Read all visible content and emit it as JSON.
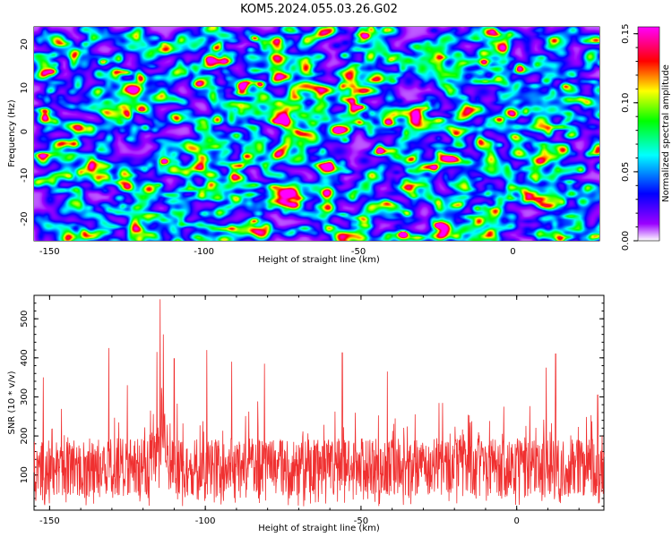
{
  "title": "KOM5.2024.055.03.26.G02",
  "chart_data": [
    {
      "type": "heatmap",
      "xlabel": "Height of straight line (km)",
      "ylabel": "Frequency (Hz)",
      "xlim": [
        -155,
        28
      ],
      "ylim": [
        -25,
        24
      ],
      "x_ticks": [
        "-150",
        "-100",
        "-50",
        "0"
      ],
      "y_ticks": [
        "-20",
        "-10",
        "0",
        "10",
        "20"
      ],
      "colorbar": {
        "label": "Normalized spectral amplitude",
        "range": [
          0.0,
          0.155
        ],
        "ticks": [
          "0.00",
          "0.05",
          "0.10",
          "0.15"
        ],
        "colormap": [
          "#ffffff",
          "#9a00ff",
          "#0000ff",
          "#00ffff",
          "#00ff00",
          "#ffff00",
          "#ff0000",
          "#ff00ff"
        ]
      },
      "hotspots": [
        {
          "x": -36,
          "y": -23,
          "v": 0.155
        },
        {
          "x": -48,
          "y": 22,
          "v": 0.12
        },
        {
          "x": -82,
          "y": 11,
          "v": 0.12
        },
        {
          "x": -57,
          "y": 0.5,
          "v": 0.11
        },
        {
          "x": -84,
          "y": 21.5,
          "v": 0.12
        },
        {
          "x": -113,
          "y": -6.5,
          "v": 0.13
        },
        {
          "x": -133,
          "y": 16,
          "v": 0.08
        },
        {
          "x": -25,
          "y": -21,
          "v": 0.09
        },
        {
          "x": -84,
          "y": -20,
          "v": 0.09
        },
        {
          "x": -10,
          "y": 16,
          "v": 0.07
        }
      ]
    },
    {
      "type": "line",
      "xlabel": "Height of straight line (km)",
      "ylabel": "SNR (10 * v/v)",
      "xlim": [
        -155,
        28
      ],
      "ylim": [
        10,
        560
      ],
      "x_ticks": [
        "-150",
        "-100",
        "-50",
        "0"
      ],
      "y_ticks": [
        "100",
        "200",
        "300",
        "400",
        "500"
      ],
      "color": "#f03030",
      "baseline": 120,
      "spread": 55,
      "peaks": [
        {
          "x": -114.5,
          "y": 550
        },
        {
          "x": -115.5,
          "y": 415
        },
        {
          "x": -113.5,
          "y": 460
        },
        {
          "x": -131,
          "y": 425
        },
        {
          "x": -110,
          "y": 398
        },
        {
          "x": -99.5,
          "y": 420
        },
        {
          "x": -56,
          "y": 413
        },
        {
          "x": 12.5,
          "y": 410
        },
        {
          "x": 9.5,
          "y": 375
        },
        {
          "x": -152,
          "y": 350
        },
        {
          "x": -91.5,
          "y": 390
        },
        {
          "x": -81,
          "y": 385
        },
        {
          "x": -41.5,
          "y": 365
        },
        {
          "x": -125,
          "y": 330
        },
        {
          "x": 26,
          "y": 305
        }
      ]
    }
  ]
}
